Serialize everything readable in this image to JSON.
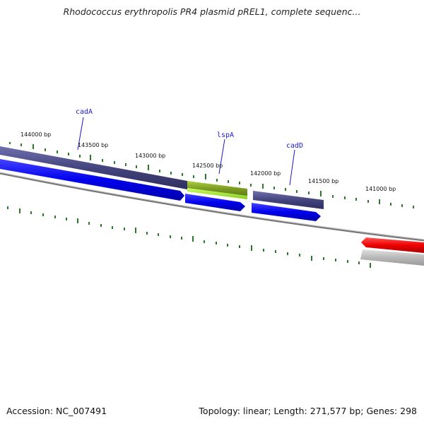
{
  "title": "Rhodococcus erythropolis PR4 plasmid pREL1, complete sequenc...",
  "footer": {
    "accession": "Accession: NC_007491",
    "summary": "Topology: linear; Length: 271,577 bp; Genes: 298"
  },
  "ruler_labels": [
    "144000 bp",
    "143500 bp",
    "143000 bp",
    "142500 bp",
    "142000 bp",
    "141500 bp",
    "141000 bp"
  ],
  "gene_labels": [
    "cadA",
    "lspA",
    "cadD"
  ],
  "colors": {
    "forward_gene": "#0000ee",
    "feature_bar": "#4a4a8a",
    "highlight_feature": "#99cc22",
    "reverse_gene": "#ee1111",
    "reverse_feature": "#bbbbbb",
    "backbone": "#777777",
    "ticks": "#2a7a2a",
    "label_color": "#1a1acc"
  }
}
